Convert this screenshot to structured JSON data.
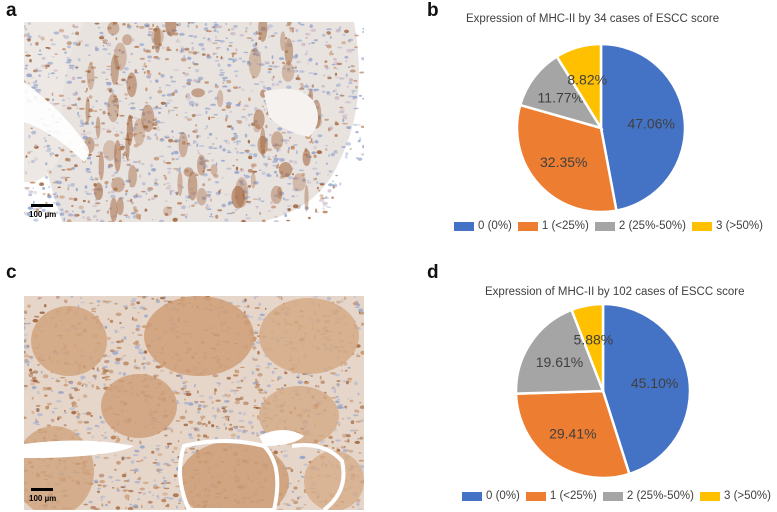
{
  "panels": {
    "a": {
      "letter": "a",
      "scale_label": "100 µm"
    },
    "b": {
      "letter": "b"
    },
    "c": {
      "letter": "c",
      "scale_label": "100 µm"
    },
    "d": {
      "letter": "d"
    }
  },
  "colors": {
    "blue": "#4472C4",
    "orange": "#ED7D31",
    "gray": "#A5A5A5",
    "yellow": "#FFC000",
    "ihc_light_bg": "#eeeae6",
    "ihc_dark_bg": "#d9b99a",
    "hematoxylin": "#8fa0c8",
    "dab": "#9a5a2e"
  },
  "chart_data": [
    {
      "type": "pie",
      "title": "Expression of MHC-II by 34 cases of ESCC score",
      "categories": [
        "0 (0%)",
        "1 (<25%)",
        "2 (25%-50%)",
        "3 (>50%)"
      ],
      "values": [
        47.06,
        32.35,
        11.77,
        8.82
      ],
      "labels": [
        "47.06%",
        "32.35%",
        "11.77%",
        "8.82%"
      ],
      "colors": [
        "#4472C4",
        "#ED7D31",
        "#A5A5A5",
        "#FFC000"
      ],
      "legend_position": "bottom"
    },
    {
      "type": "pie",
      "title": "Expression of MHC-II by 102 cases of ESCC score",
      "categories": [
        "0 (0%)",
        "1 (<25%)",
        "2 (25%-50%)",
        "3 (>50%)"
      ],
      "values": [
        45.1,
        29.41,
        19.61,
        5.88
      ],
      "labels": [
        "45.10%",
        "29.41%",
        "19.61%",
        "5.88%"
      ],
      "colors": [
        "#4472C4",
        "#ED7D31",
        "#A5A5A5",
        "#FFC000"
      ],
      "legend_position": "bottom"
    }
  ]
}
